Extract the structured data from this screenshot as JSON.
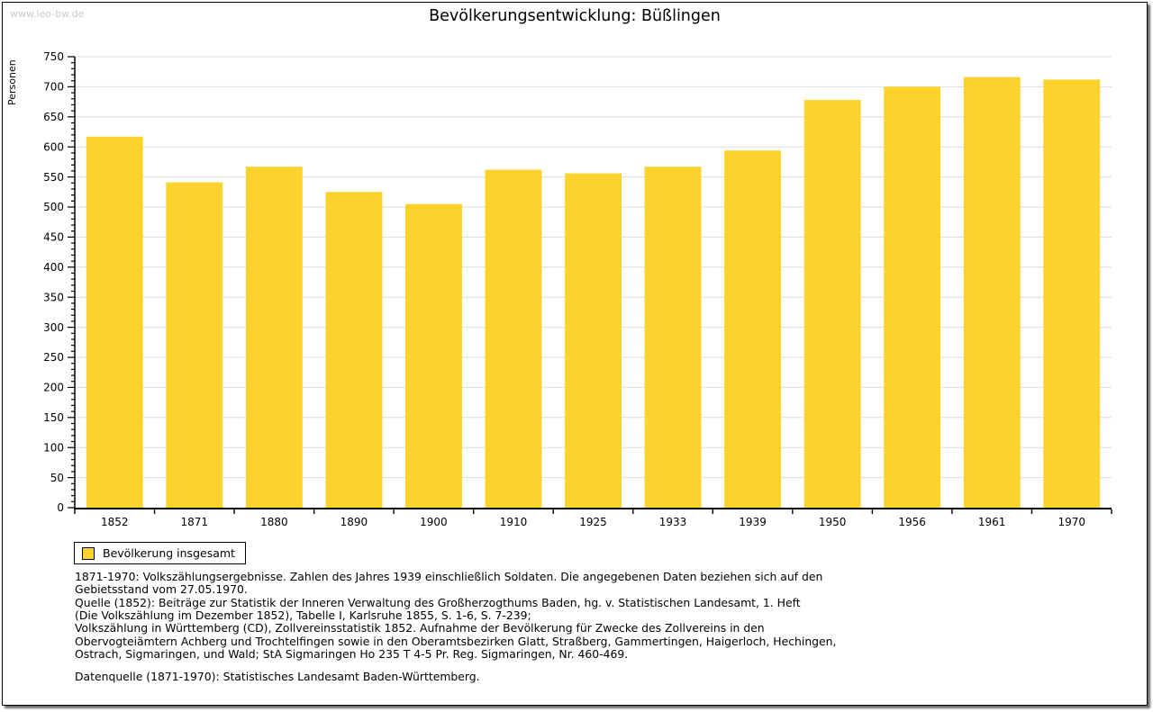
{
  "page": {
    "watermark": "www.leo-bw.de",
    "title": "Bevölkerungsentwicklung: Büßlingen"
  },
  "legend": {
    "label": "Bevölkerung insgesamt",
    "swatch_color": "#FCD32D"
  },
  "chart_data": {
    "type": "bar",
    "title": "Bevölkerungsentwicklung: Büßlingen",
    "ylabel": "Personen",
    "xlabel": "",
    "categories": [
      "1852",
      "1871",
      "1880",
      "1890",
      "1900",
      "1910",
      "1925",
      "1933",
      "1939",
      "1950",
      "1956",
      "1961",
      "1970"
    ],
    "series": [
      {
        "name": "Bevölkerung insgesamt",
        "values": [
          617,
          541,
          567,
          525,
          505,
          562,
          556,
          567,
          594,
          678,
          700,
          716,
          712
        ]
      }
    ],
    "ylim": [
      0,
      750
    ],
    "y_major_step": 50,
    "y_minor_step": 10,
    "grid": true,
    "legend_position": "bottom-left",
    "bar_color": "#FCD32D",
    "grid_color": "#DBDBDB",
    "axis_color": "#000000"
  },
  "footer": {
    "lines": [
      "1871-1970: Volkszählungsergebnisse. Zahlen des Jahres 1939 einschließlich Soldaten. Die angegebenen Daten beziehen sich auf den",
      "Gebietsstand vom 27.05.1970.",
      "Quelle (1852): Beiträge zur Statistik der Inneren Verwaltung des Großherzogthums Baden, hg. v. Statistischen Landesamt, 1. Heft",
      "(Die Volkszählung im Dezember 1852), Tabelle I, Karlsruhe 1855, S. 1-6, S. 7-239;",
      "Volkszählung in Württemberg (CD), Zollvereinsstatistik 1852. Aufnahme der Bevölkerung für Zwecke des Zollvereins in den",
      "Obervogteiämtern Achberg und Trochtelfingen sowie in den Oberamtsbezirken Glatt, Straßberg, Gammertingen, Haigerloch, Hechingen,",
      "Ostrach, Sigmaringen, und Wald; StA Sigmaringen Ho 235 T 4-5 Pr. Reg. Sigmaringen, Nr. 460-469."
    ],
    "datasource": "Datenquelle (1871-1970): Statistisches Landesamt Baden-Württemberg."
  }
}
